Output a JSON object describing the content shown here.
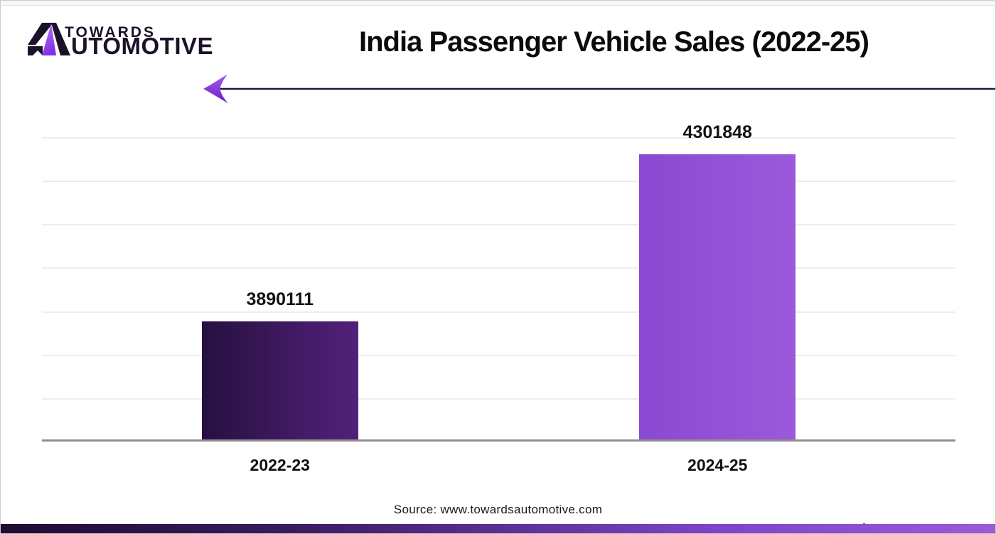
{
  "logo": {
    "brand": "TOWARDS AUTOMOTIVE",
    "line1": "TOWARDS",
    "line2_after_glyph": "UTOMOTIVE",
    "text_color": "#1b1228",
    "purple": "#9b4df0"
  },
  "decor": {
    "arrow_line_color": "#1e1e35",
    "arrow_head_gradient": [
      "#a35cf2",
      "#6a1fc2"
    ],
    "bottom_bar_gradient": [
      "#1d0c33",
      "#3a1c61",
      "#7e44c8",
      "#9a5ad9"
    ]
  },
  "chart_data": {
    "type": "bar",
    "title": "India Passenger Vehicle Sales (2022-25)",
    "categories": [
      "2022-23",
      "2024-25"
    ],
    "values": [
      3890111,
      4301848
    ],
    "value_labels": [
      "3890111",
      "4301848"
    ],
    "xlabel": "",
    "ylabel": "",
    "ylim": [
      3600000,
      4350000
    ],
    "y_axis_labels_visible": false,
    "grid": true,
    "gridline_count": 7,
    "gridline_color": "#ededed",
    "axis_color": "#8f8f8f",
    "legend": false,
    "bar_gradients": [
      [
        "#261040",
        "#52217a"
      ],
      [
        "#8a49d1",
        "#9b59db"
      ]
    ]
  },
  "footer": {
    "source": "Source: www.towardsautomotive.com"
  }
}
